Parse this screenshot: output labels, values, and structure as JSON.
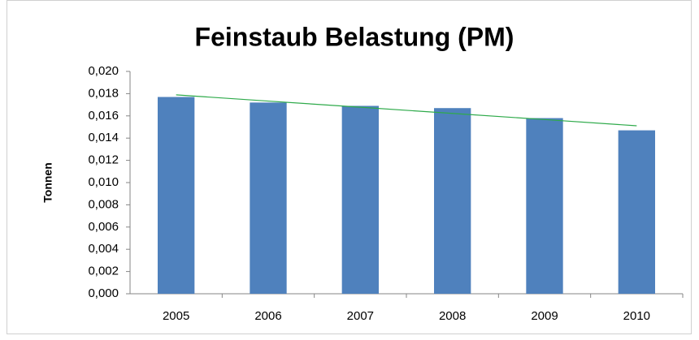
{
  "chart_data": {
    "type": "bar",
    "title": "Feinstaub Belastung (PM)",
    "y_label": "Tonnen",
    "categories": [
      "2005",
      "2006",
      "2007",
      "2008",
      "2009",
      "2010"
    ],
    "values": [
      0.0177,
      0.0172,
      0.0169,
      0.0167,
      0.0158,
      0.0147
    ],
    "color": "#4f81bd",
    "trendline": {
      "color": "#2eaa4a",
      "values": [
        0.01789,
        0.01733,
        0.01678,
        0.01622,
        0.01567,
        0.01511
      ]
    },
    "ylim": [
      0,
      0.02
    ],
    "yticks": [
      {
        "value": 0,
        "label": "0,000"
      },
      {
        "value": 0.002,
        "label": "0,002"
      },
      {
        "value": 0.004,
        "label": "0,004"
      },
      {
        "value": 0.006,
        "label": "0,006"
      },
      {
        "value": 0.008,
        "label": "0,008"
      },
      {
        "value": 0.01,
        "label": "0,010"
      },
      {
        "value": 0.012,
        "label": "0,012"
      },
      {
        "value": 0.014,
        "label": "0,014"
      },
      {
        "value": 0.016,
        "label": "0,016"
      },
      {
        "value": 0.018,
        "label": "0,018"
      },
      {
        "value": 0.02,
        "label": "0,020"
      }
    ],
    "grid": false
  }
}
